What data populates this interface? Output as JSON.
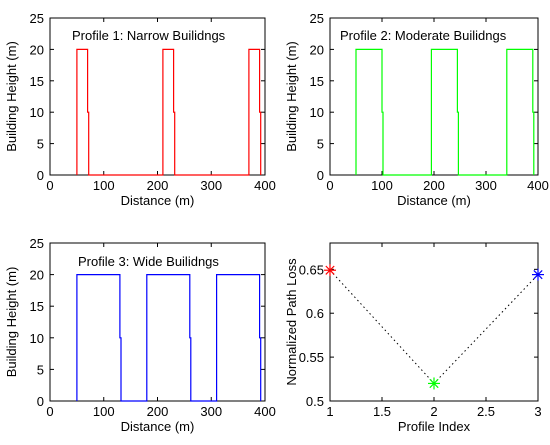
{
  "chart_data": [
    {
      "type": "line",
      "title": "Profile 1: Narrow Builidngs",
      "xlabel": "Distance (m)",
      "ylabel": "Building Height (m)",
      "xlim": [
        0,
        400
      ],
      "ylim": [
        0,
        25
      ],
      "xticks": [
        0,
        100,
        200,
        300,
        400
      ],
      "yticks": [
        0,
        5,
        10,
        15,
        20,
        25
      ],
      "grid": false,
      "color": "#ff0000",
      "series": [
        {
          "x": [
            50,
            50,
            70,
            70,
            72,
            72,
            210,
            210,
            230,
            230,
            232,
            232,
            370,
            370,
            390,
            390,
            392,
            392
          ],
          "y": [
            0,
            20,
            20,
            10,
            10,
            0,
            0,
            20,
            20,
            10,
            10,
            0,
            0,
            20,
            20,
            10,
            10,
            0
          ]
        }
      ]
    },
    {
      "type": "line",
      "title": "Profile 2: Moderate Builidngs",
      "xlabel": "Distance (m)",
      "ylabel": "Building Height (m)",
      "xlim": [
        0,
        400
      ],
      "ylim": [
        0,
        25
      ],
      "xticks": [
        0,
        100,
        200,
        300,
        400
      ],
      "yticks": [
        0,
        5,
        10,
        15,
        20,
        25
      ],
      "grid": false,
      "color": "#00ff00",
      "series": [
        {
          "x": [
            50,
            50,
            100,
            100,
            102,
            102,
            195,
            195,
            245,
            245,
            247,
            247,
            340,
            340,
            390,
            390,
            392,
            392
          ],
          "y": [
            0,
            20,
            20,
            10,
            10,
            0,
            0,
            20,
            20,
            10,
            10,
            0,
            0,
            20,
            20,
            10,
            10,
            0
          ]
        }
      ]
    },
    {
      "type": "line",
      "title": "Profile 3: Wide Builidngs",
      "xlabel": "Distance (m)",
      "ylabel": "Building Height (m)",
      "xlim": [
        0,
        400
      ],
      "ylim": [
        0,
        25
      ],
      "xticks": [
        0,
        100,
        200,
        300,
        400
      ],
      "yticks": [
        0,
        5,
        10,
        15,
        20,
        25
      ],
      "grid": false,
      "color": "#0000ff",
      "series": [
        {
          "x": [
            50,
            50,
            130,
            130,
            132,
            132,
            180,
            180,
            260,
            260,
            262,
            262,
            310,
            310,
            390,
            390,
            392,
            392
          ],
          "y": [
            0,
            20,
            20,
            10,
            10,
            0,
            0,
            20,
            20,
            10,
            10,
            0,
            0,
            20,
            20,
            10,
            10,
            0
          ]
        }
      ]
    },
    {
      "type": "scatter",
      "title": "",
      "xlabel": "Profile Index",
      "ylabel": "Normalized Path Loss",
      "xlim": [
        1,
        3
      ],
      "ylim": [
        0.5,
        0.68
      ],
      "xticks": [
        1,
        1.5,
        2,
        2.5,
        3
      ],
      "yticks": [
        0.5,
        0.55,
        0.6,
        0.65
      ],
      "grid": false,
      "connector": "dotted",
      "connector_color": "#000000",
      "points": [
        {
          "x": 1,
          "y": 0.649,
          "color": "#ff0000"
        },
        {
          "x": 2,
          "y": 0.52,
          "color": "#00ff00"
        },
        {
          "x": 3,
          "y": 0.644,
          "color": "#0000ff"
        }
      ]
    }
  ]
}
